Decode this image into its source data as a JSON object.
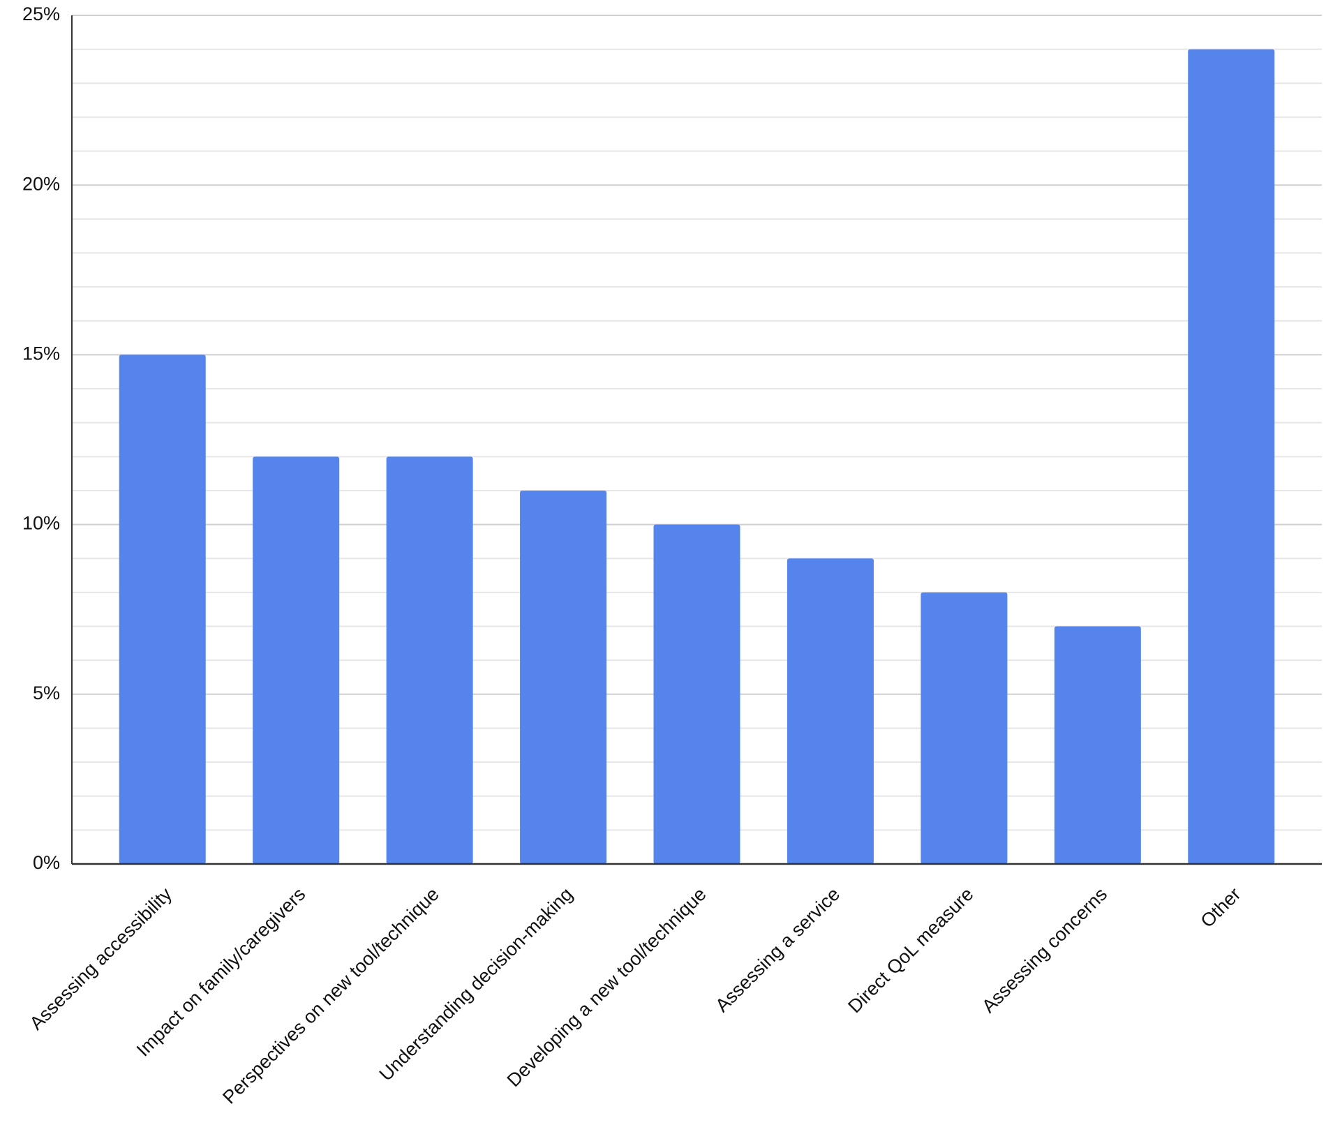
{
  "chart_data": {
    "type": "bar",
    "categories": [
      "Assessing accessibility",
      "Impact on family/caregivers",
      "Perspectives on new tool/technique",
      "Understanding decision-making",
      "Developing a new tool/technique",
      "Assessing a service",
      "Direct QoL measure",
      "Assessing concerns",
      "Other"
    ],
    "values": [
      15,
      12,
      12,
      11,
      10,
      9,
      8,
      7,
      24
    ],
    "color": "#5484ec",
    "ylim": [
      0,
      25
    ],
    "yticks": [
      {
        "value": 0,
        "label": "0%"
      },
      {
        "value": 5,
        "label": "5%"
      },
      {
        "value": 10,
        "label": "10%"
      },
      {
        "value": 15,
        "label": "15%"
      },
      {
        "value": 20,
        "label": "20%"
      },
      {
        "value": 25,
        "label": "25%"
      }
    ],
    "yminorticks": [
      1,
      2,
      3,
      4,
      6,
      7,
      8,
      9,
      11,
      12,
      13,
      14,
      16,
      17,
      18,
      19,
      21,
      22,
      23,
      24
    ],
    "grid": true
  }
}
